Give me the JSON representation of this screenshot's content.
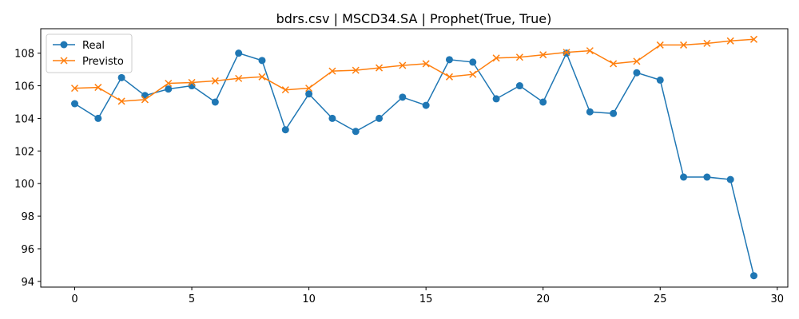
{
  "chart_data": {
    "type": "line",
    "title": "bdrs.csv | MSCD34.SA | Prophet(True, True)",
    "xlabel": "",
    "ylabel": "",
    "xlim": [
      -1.45,
      30.45
    ],
    "ylim": [
      93.65,
      109.5
    ],
    "xticks": [
      0,
      5,
      10,
      15,
      20,
      25,
      30
    ],
    "yticks": [
      94,
      96,
      98,
      100,
      102,
      104,
      106,
      108
    ],
    "grid": false,
    "legend": "top-left",
    "x": [
      0,
      1,
      2,
      3,
      4,
      5,
      6,
      7,
      8,
      9,
      10,
      11,
      12,
      13,
      14,
      15,
      16,
      17,
      18,
      19,
      20,
      21,
      22,
      23,
      24,
      25,
      26,
      27,
      28,
      29
    ],
    "series": [
      {
        "name": "Real",
        "color": "#1f77b4",
        "marker": "circle",
        "values": [
          104.9,
          104.0,
          106.5,
          105.4,
          105.8,
          106.0,
          105.0,
          108.0,
          107.55,
          103.3,
          105.5,
          104.0,
          103.2,
          104.0,
          105.3,
          104.8,
          107.6,
          107.45,
          105.2,
          106.0,
          105.0,
          108.0,
          104.4,
          104.3,
          106.8,
          106.35,
          100.4,
          100.4,
          100.25,
          94.35
        ]
      },
      {
        "name": "Previsto",
        "color": "#ff7f0e",
        "marker": "x",
        "values": [
          105.85,
          105.9,
          105.05,
          105.15,
          106.15,
          106.2,
          106.3,
          106.45,
          106.55,
          105.75,
          105.85,
          106.9,
          106.95,
          107.1,
          107.25,
          107.35,
          106.55,
          106.7,
          107.7,
          107.75,
          107.9,
          108.05,
          108.15,
          107.35,
          107.5,
          108.5,
          108.5,
          108.6,
          108.75,
          108.85
        ]
      }
    ]
  }
}
